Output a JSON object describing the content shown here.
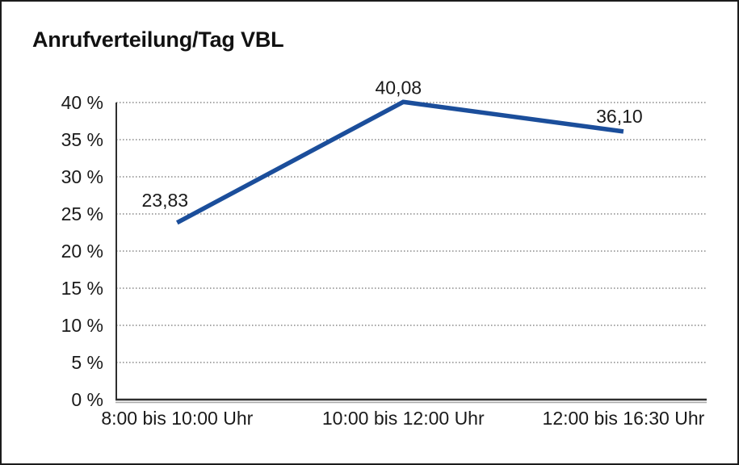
{
  "chart_data": {
    "type": "line",
    "title": "Anrufverteilung/Tag VBL",
    "categories": [
      "8:00 bis 10:00 Uhr",
      "10:00 bis 12:00 Uhr",
      "12:00 bis 16:30 Uhr"
    ],
    "values": [
      23.83,
      40.08,
      36.1
    ],
    "value_labels": [
      "23,83",
      "40,08",
      "36,10"
    ],
    "series_name": "Anrufverteilung",
    "xlabel": "",
    "ylabel": "",
    "ylim": [
      0,
      40
    ],
    "y_step": 5,
    "y_tick_labels": [
      "0 %",
      "5 %",
      "10 %",
      "15 %",
      "20 %",
      "25 %",
      "30 %",
      "35 %",
      "40 %"
    ],
    "grid": "horizontal-dotted",
    "legend": "none",
    "colors": {
      "line": "#1B4E9B",
      "text": "#1a1a1a",
      "grid": "#4d4d4d",
      "axis": "#2e2e2e",
      "axis_shadow": "#a8a8a8",
      "border": "#1b1b1b",
      "background": "#ffffff"
    }
  }
}
